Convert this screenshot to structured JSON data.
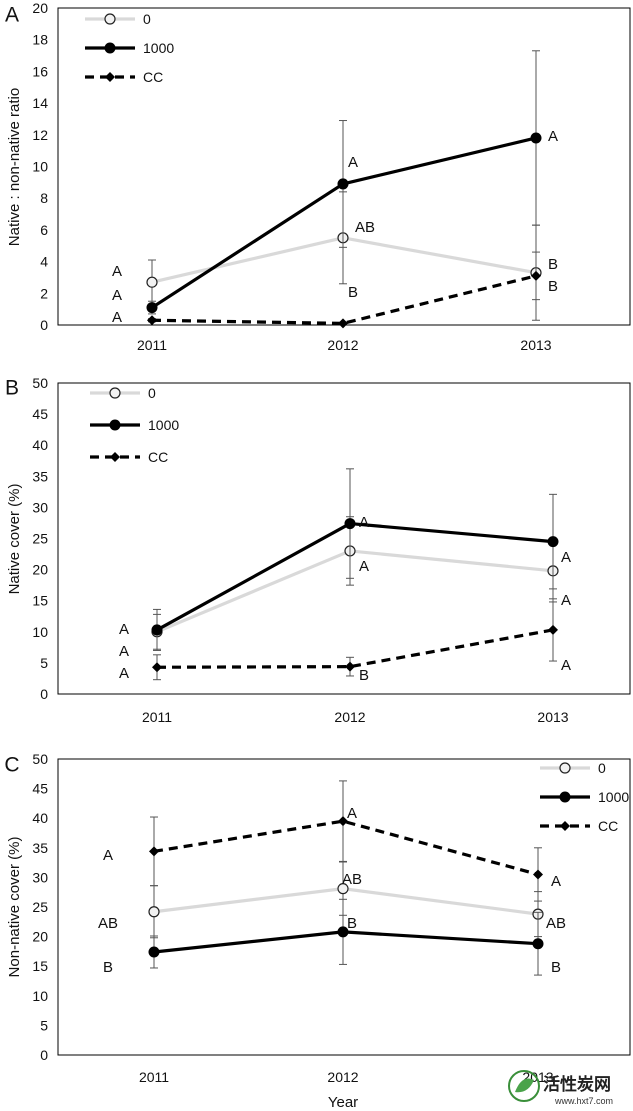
{
  "chart_data": [
    {
      "type": "line",
      "panel": "A",
      "title": "",
      "xlabel": "",
      "ylabel": "Native : non-native ratio",
      "categories": [
        "2011",
        "2012",
        "2013"
      ],
      "ylim": [
        0,
        20
      ],
      "yticks": [
        "0",
        "2",
        "4",
        "6",
        "8",
        "10",
        "12",
        "14",
        "16",
        "18",
        "20"
      ],
      "legend_position": "top-left",
      "series": [
        {
          "name": "0",
          "color": "#d9d9d9",
          "style": "solid",
          "marker": "circle-open",
          "values": [
            2.7,
            5.5,
            3.3
          ],
          "errors": [
            1.4,
            2.9,
            3.0
          ],
          "letters": [
            "A",
            "AB",
            "B"
          ]
        },
        {
          "name": "1000",
          "color": "#000000",
          "style": "solid",
          "marker": "circle-filled",
          "values": [
            1.1,
            8.9,
            11.8
          ],
          "errors": [
            0.4,
            4.0,
            5.5
          ],
          "letters": [
            "A",
            "A",
            "A"
          ]
        },
        {
          "name": "CC",
          "color": "#000000",
          "style": "dashed",
          "marker": "diamond",
          "values": [
            0.3,
            0.1,
            3.1
          ],
          "errors": [
            0.1,
            0.05,
            1.5
          ],
          "letters": [
            "A",
            "B",
            "B"
          ]
        }
      ]
    },
    {
      "type": "line",
      "panel": "B",
      "title": "",
      "xlabel": "",
      "ylabel": "Native cover (%)",
      "categories": [
        "2011",
        "2012",
        "2013"
      ],
      "ylim": [
        0,
        50
      ],
      "yticks": [
        "0",
        "5",
        "10",
        "15",
        "20",
        "25",
        "30",
        "35",
        "40",
        "45",
        "50"
      ],
      "legend_position": "top-left",
      "series": [
        {
          "name": "0",
          "color": "#d9d9d9",
          "style": "solid",
          "marker": "circle-open",
          "values": [
            10.0,
            23.0,
            19.8
          ],
          "errors": [
            2.8,
            5.5,
            5.0
          ],
          "letters": [
            "A",
            "A",
            "A"
          ]
        },
        {
          "name": "1000",
          "color": "#000000",
          "style": "solid",
          "marker": "circle-filled",
          "values": [
            10.3,
            27.4,
            24.5
          ],
          "errors": [
            3.3,
            8.8,
            7.6
          ],
          "letters": [
            "A",
            "A",
            "A"
          ]
        },
        {
          "name": "CC",
          "color": "#000000",
          "style": "dashed",
          "marker": "diamond",
          "values": [
            4.3,
            4.4,
            10.3
          ],
          "errors": [
            2.0,
            1.5,
            5.0
          ],
          "letters": [
            "A",
            "B",
            "A"
          ]
        }
      ]
    },
    {
      "type": "line",
      "panel": "C",
      "title": "",
      "xlabel": "Year",
      "ylabel": "Non-native cover (%)",
      "categories": [
        "2011",
        "2012",
        "2013"
      ],
      "ylim": [
        0,
        50
      ],
      "yticks": [
        "0",
        "5",
        "10",
        "15",
        "20",
        "25",
        "30",
        "35",
        "40",
        "45",
        "50"
      ],
      "legend_position": "top-right",
      "series": [
        {
          "name": "0",
          "color": "#d9d9d9",
          "style": "solid",
          "marker": "circle-open",
          "values": [
            24.2,
            28.1,
            23.8
          ],
          "errors": [
            4.4,
            4.5,
            3.8
          ],
          "letters": [
            "AB",
            "AB",
            "AB"
          ]
        },
        {
          "name": "1000",
          "color": "#000000",
          "style": "solid",
          "marker": "circle-filled",
          "values": [
            17.4,
            20.8,
            18.8
          ],
          "errors": [
            2.7,
            5.5,
            5.3
          ],
          "letters": [
            "B",
            "B",
            "B"
          ]
        },
        {
          "name": "CC",
          "color": "#000000",
          "style": "dashed",
          "marker": "diamond",
          "values": [
            34.4,
            39.5,
            30.5
          ],
          "errors": [
            5.8,
            6.8,
            4.5
          ],
          "letters": [
            "A",
            "A",
            "A"
          ]
        }
      ]
    }
  ],
  "watermark": {
    "name": "活性炭网",
    "url": "www.hxt7.com"
  }
}
